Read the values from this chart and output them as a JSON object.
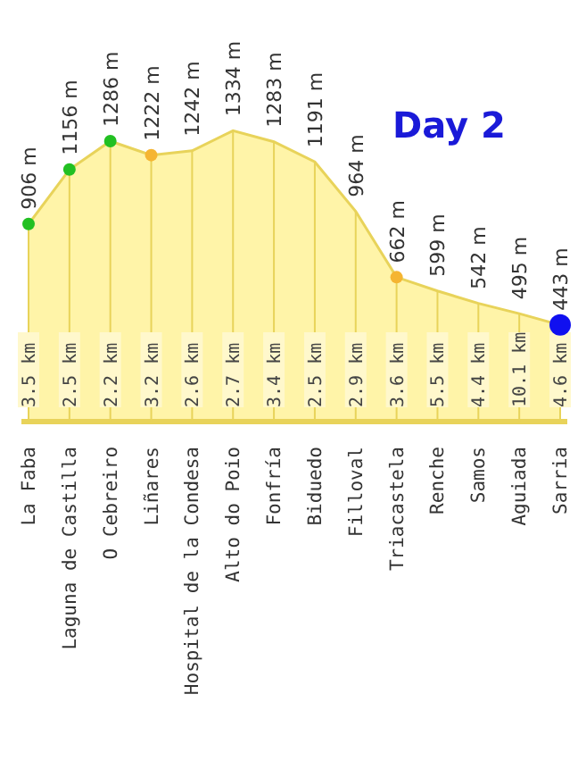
{
  "chart_data": {
    "type": "area",
    "title": "Day 2",
    "categories": [
      "La Faba",
      "Laguna de Castilla",
      "O Cebreiro",
      "Liñares",
      "Hospital de la Condesa",
      "Alto do Poio",
      "Fonfría",
      "Biduedo",
      "Filloval",
      "Triacastela",
      "Renche",
      "Samos",
      "Aguiada",
      "Sarria"
    ],
    "series": [
      {
        "color": "#e8d35a",
        "values": [
          906,
          1156,
          1286,
          1222,
          1242,
          1334,
          1283,
          1191,
          964,
          662,
          599,
          542,
          495,
          443
        ],
        "value_labels": [
          "906 m",
          "1156 m",
          "1286 m",
          "1222 m",
          "1242 m",
          "1334 m",
          "1283 m",
          "1191 m",
          "964 m",
          "662 m",
          "599 m",
          "542 m",
          "495 m",
          "443 m"
        ],
        "colors": [
          "#22c022",
          "#22c022",
          "#22c022",
          "#f5b532",
          null,
          null,
          null,
          null,
          null,
          "#f5b532",
          null,
          null,
          null,
          "#1010f0"
        ]
      }
    ],
    "annotations": [
      "3.5 km",
      "2.5 km",
      "2.2 km",
      "3.2 km",
      "2.6 km",
      "2.7 km",
      "3.4 km",
      "2.5 km",
      "2.9 km",
      "3.6 km",
      "5.5 km",
      "4.4 km",
      "10.1 km",
      "4.6 km"
    ],
    "grid": "x"
  }
}
